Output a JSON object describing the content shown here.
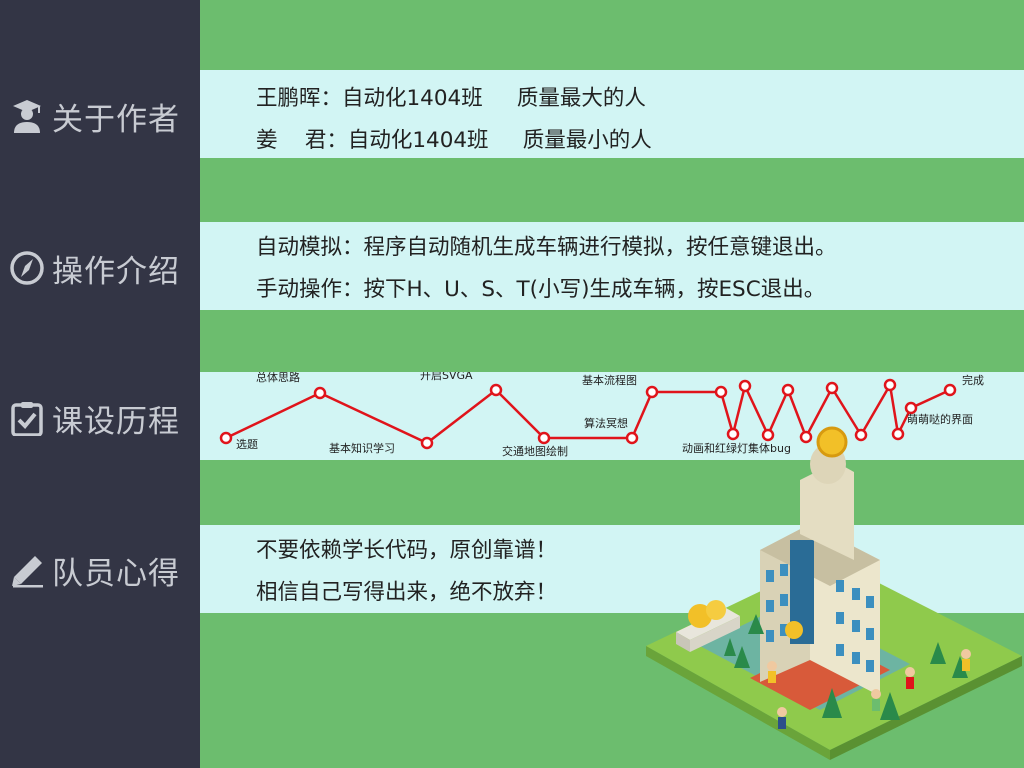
{
  "sidebar": {
    "items": [
      {
        "label": "关于作者",
        "icon": "student-icon"
      },
      {
        "label": "操作介绍",
        "icon": "compass-icon"
      },
      {
        "label": "课设历程",
        "icon": "clipboard-check-icon"
      },
      {
        "label": "队员心得",
        "icon": "pencil-icon"
      }
    ]
  },
  "authors": {
    "line1": "王鹏晖：自动化1404班     质量最大的人",
    "line2": "姜    君：自动化1404班     质量最小的人"
  },
  "operation": {
    "line1": "自动模拟：程序自动随机生成车辆进行模拟，按任意键退出。",
    "line2": "手动操作：按下H、U、S、T(小写)生成车辆，按ESC退出。"
  },
  "timeline": {
    "line_color": "#e0141b",
    "labels": [
      "选题",
      "总体思路",
      "基本知识学习",
      "开启SVGA",
      "交通地图绘制",
      "算法冥想",
      "基本流程图",
      "动画和红绿灯集体bug",
      "萌萌哒的界面",
      "完成"
    ]
  },
  "thoughts": {
    "line1": "不要依赖学长代码，原创靠谱！",
    "line2": "相信自己写得出来，绝不放弃！"
  },
  "colors": {
    "background": "#6cbd6e",
    "sidebar": "#333545",
    "band": "#d2f5f4"
  }
}
